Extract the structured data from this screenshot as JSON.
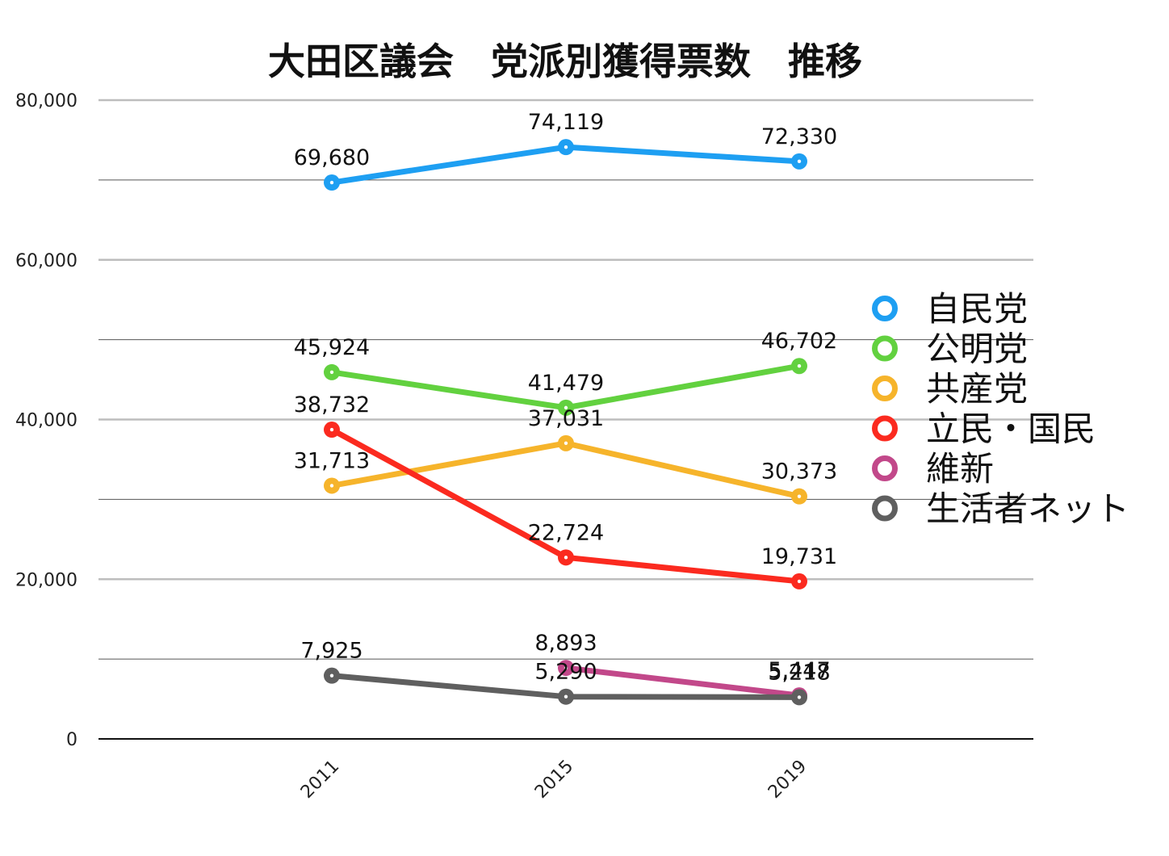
{
  "chart_data": {
    "type": "line",
    "title": "大田区議会　党派別獲得票数　推移",
    "xlabel": "",
    "ylabel": "",
    "categories": [
      "2011",
      "2015",
      "2019"
    ],
    "ylim": [
      0,
      80000
    ],
    "yticks": [
      0,
      20000,
      40000,
      60000,
      80000
    ],
    "ytick_labels": [
      "0",
      "20,000",
      "40,000",
      "60,000",
      "80,000"
    ],
    "grid": true,
    "legend_position": "right",
    "series": [
      {
        "name": "自民党",
        "color": "#1e9ff2",
        "values": [
          69680,
          74119,
          72330
        ],
        "labels": [
          "69,680",
          "74,119",
          "72,330"
        ]
      },
      {
        "name": "公明党",
        "color": "#62d13f",
        "values": [
          45924,
          41479,
          46702
        ],
        "labels": [
          "45,924",
          "41,479",
          "46,702"
        ]
      },
      {
        "name": "共産党",
        "color": "#f6b42b",
        "values": [
          31713,
          37031,
          30373
        ],
        "labels": [
          "31,713",
          "37,031",
          "30,373"
        ]
      },
      {
        "name": "立民・国民",
        "color": "#fb2a1f",
        "values": [
          38732,
          22724,
          19731
        ],
        "labels": [
          "38,732",
          "22,724",
          "19,731"
        ]
      },
      {
        "name": "維新",
        "color": "#c2488a",
        "values": [
          null,
          8893,
          5447
        ],
        "labels": [
          "",
          "8,893",
          "5,447"
        ]
      },
      {
        "name": "生活者ネット",
        "color": "#5f5f5f",
        "values": [
          7925,
          5290,
          5218
        ],
        "labels": [
          "7,925",
          "5,290",
          "5,218"
        ]
      }
    ]
  }
}
